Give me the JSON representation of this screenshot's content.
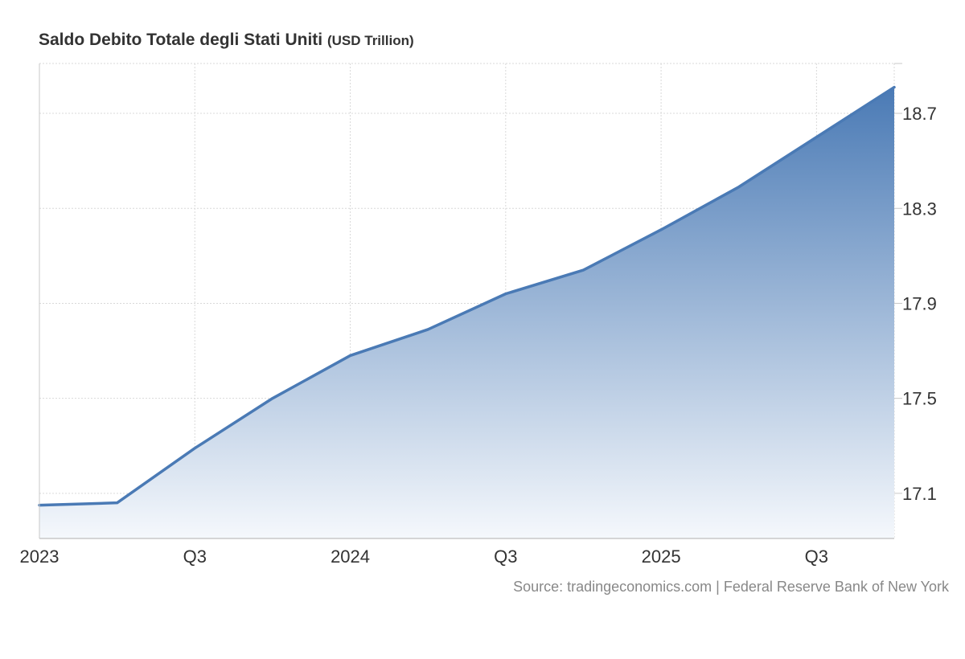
{
  "title": "Saldo Debito Totale degli Stati Uniti",
  "unit": "(USD Trillion)",
  "source": "Source: tradingeconomics.com | Federal Reserve Bank of New York",
  "colors": {
    "line": "#4a7ab5",
    "area_top": "#4a7ab5",
    "area_bottom": "#f5f8fc",
    "grid": "#d9d9d9",
    "axis_text": "#333333"
  },
  "chart_data": {
    "type": "area",
    "x": [
      "2023 Q1",
      "2023 Q2",
      "2023 Q3",
      "2023 Q4",
      "2024 Q1",
      "2024 Q2",
      "2024 Q3",
      "2024 Q4",
      "2025 Q1",
      "2025 Q2",
      "2025 Q3",
      "2025 Q4"
    ],
    "series": [
      {
        "values": [
          17.05,
          17.06,
          17.29,
          17.5,
          17.68,
          17.79,
          17.94,
          18.04,
          18.21,
          18.39,
          18.6,
          18.81
        ]
      }
    ],
    "x_tick_labels": [
      "2023",
      "",
      "Q3",
      "",
      "2024",
      "",
      "Q3",
      "",
      "2025",
      "",
      "Q3",
      ""
    ],
    "y_ticks": [
      17.1,
      17.5,
      17.9,
      18.3,
      18.7
    ],
    "y_tick_labels": [
      "17.1",
      "17.5",
      "17.9",
      "18.3",
      "18.7"
    ],
    "ylim": [
      16.91,
      18.91
    ],
    "y_axis_position": "right",
    "grid": true,
    "legend": "none"
  }
}
